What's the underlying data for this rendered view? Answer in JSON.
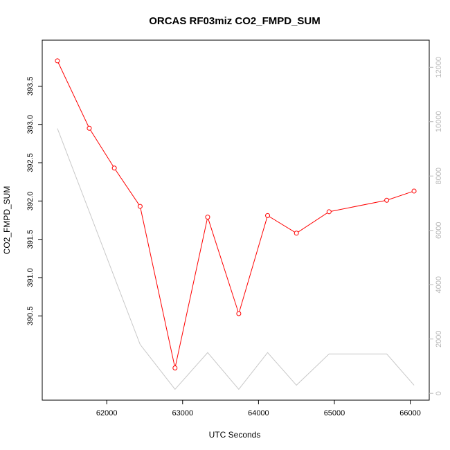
{
  "chart_data": {
    "type": "line",
    "title": "ORCAS RF03miz CO2_FMPD_SUM",
    "xlabel": "UTC Seconds",
    "ylabel": "CO2_FMPD_SUM",
    "xlim": [
      61150,
      66250
    ],
    "ylim": [
      389.4,
      394.1
    ],
    "y2lim": [
      -250,
      13000
    ],
    "x_ticks": [
      62000,
      63000,
      64000,
      65000,
      66000
    ],
    "y_ticks": [
      390.5,
      391.0,
      391.5,
      392.0,
      392.5,
      393.0,
      393.5
    ],
    "y_tick_labels": [
      "390.5",
      "391.0",
      "391.5",
      "392.0",
      "392.5",
      "393.0",
      "393.5"
    ],
    "y2_ticks": [
      0,
      2000,
      4000,
      6000,
      8000,
      10000,
      12000
    ],
    "grid": false,
    "legend": "none",
    "colors": {
      "primary": "#ff0000",
      "secondary": "#c8c8c8",
      "right_axis": "#b8b8b8",
      "frame": "#000000"
    },
    "series": [
      {
        "axis": "left",
        "style": "line+points",
        "color": "#ff0000",
        "x": [
          61350,
          61770,
          62100,
          62440,
          62900,
          63330,
          63740,
          64120,
          64500,
          64930,
          65690,
          66050
        ],
        "y": [
          393.83,
          392.95,
          392.43,
          391.93,
          389.82,
          391.79,
          390.53,
          391.81,
          391.58,
          391.86,
          392.01,
          392.13
        ]
      },
      {
        "axis": "right",
        "style": "line",
        "color": "#c8c8c8",
        "x": [
          61350,
          62440,
          62900,
          63330,
          63740,
          64120,
          64500,
          64930,
          65690,
          66050
        ],
        "y": [
          9750,
          1800,
          150,
          1500,
          150,
          1500,
          300,
          1450,
          1450,
          300
        ]
      }
    ]
  }
}
